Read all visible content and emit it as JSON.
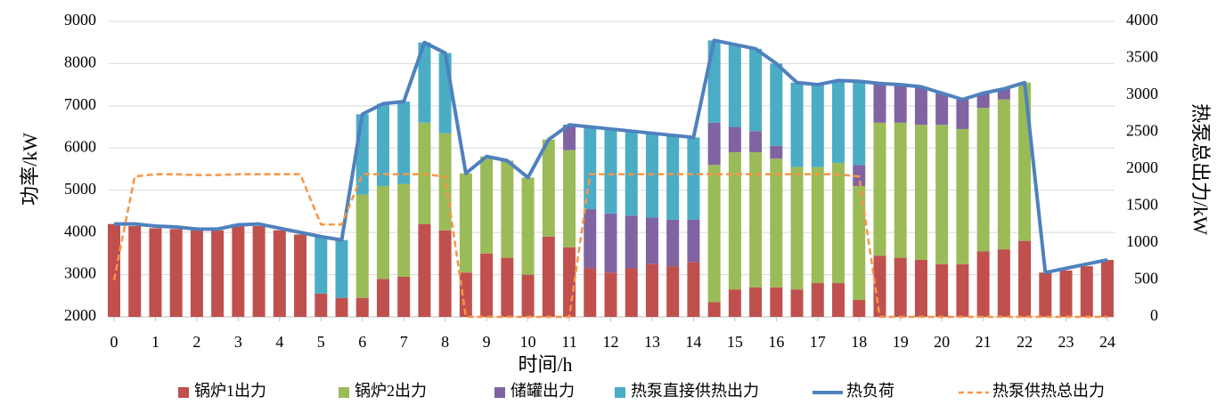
{
  "chart_data": {
    "type": "bar",
    "xlabel": "时间/h",
    "ylabel": "功率/kW",
    "y2label": "热泵总出力/kW",
    "x": [
      0,
      0.5,
      1,
      1.5,
      2,
      2.5,
      3,
      3.5,
      4,
      4.5,
      5,
      5.5,
      6,
      6.5,
      7,
      7.5,
      8,
      8.5,
      9,
      9.5,
      10,
      10.5,
      11,
      11.5,
      12,
      12.5,
      13,
      13.5,
      14,
      14.5,
      15,
      15.5,
      16,
      16.5,
      17,
      17.5,
      18,
      18.5,
      19,
      19.5,
      20,
      20.5,
      21,
      21.5,
      22,
      22.5,
      23,
      23.5,
      24
    ],
    "xlim": [
      0,
      24
    ],
    "xticks": [
      0,
      1,
      2,
      3,
      4,
      5,
      6,
      7,
      8,
      9,
      10,
      11,
      12,
      13,
      14,
      15,
      16,
      17,
      18,
      19,
      20,
      21,
      22,
      23,
      24
    ],
    "ylim": [
      2000,
      9000
    ],
    "yticks": [
      2000,
      3000,
      4000,
      5000,
      6000,
      7000,
      8000,
      9000
    ],
    "y2lim": [
      0,
      4000
    ],
    "y2ticks": [
      0,
      500,
      1000,
      1500,
      2000,
      2500,
      3000,
      3500,
      4000
    ],
    "grid": true,
    "legend": "bottom",
    "series": [
      {
        "name": "锅炉1出力",
        "type": "bar",
        "color": "#c0504d",
        "values": [
          4200,
          4150,
          4100,
          4080,
          4050,
          4050,
          4150,
          4150,
          4050,
          3950,
          2550,
          2450,
          2450,
          2900,
          2950,
          4200,
          4050,
          3050,
          3500,
          3400,
          3000,
          3900,
          3650,
          3150,
          3050,
          3150,
          3250,
          3200,
          3300,
          2350,
          2650,
          2700,
          2700,
          2650,
          2800,
          2800,
          2400,
          3450,
          3400,
          3350,
          3250,
          3250,
          3550,
          3600,
          3800,
          3050,
          3100,
          3200,
          3350
        ]
      },
      {
        "name": "锅炉2出力",
        "type": "bar",
        "color": "#9bbb59",
        "values": [
          0,
          0,
          0,
          0,
          0,
          0,
          0,
          0,
          0,
          0,
          0,
          0,
          2450,
          2200,
          2200,
          2400,
          2300,
          2350,
          2300,
          2300,
          2300,
          2300,
          2300,
          0,
          0,
          0,
          0,
          0,
          0,
          3250,
          3250,
          3200,
          3050,
          2900,
          2750,
          2850,
          2700,
          3150,
          3200,
          3200,
          3300,
          3200,
          3400,
          3550,
          3750,
          0,
          0,
          0,
          0
        ]
      },
      {
        "name": "储罐出力",
        "type": "bar",
        "color": "#8064a2",
        "values": [
          0,
          0,
          0,
          0,
          0,
          0,
          0,
          0,
          0,
          0,
          0,
          0,
          0,
          0,
          0,
          0,
          0,
          0,
          0,
          0,
          0,
          0,
          600,
          1400,
          1400,
          1250,
          1100,
          1100,
          1000,
          1000,
          600,
          500,
          300,
          0,
          0,
          0,
          500,
          930,
          900,
          900,
          750,
          700,
          350,
          250,
          0,
          0,
          0,
          0,
          0
        ]
      },
      {
        "name": "热泵直接供热出力",
        "type": "bar",
        "color": "#4bacc6",
        "values": [
          0,
          0,
          0,
          0,
          0,
          0,
          0,
          0,
          0,
          0,
          1350,
          1370,
          1900,
          1950,
          1950,
          1900,
          1900,
          0,
          0,
          0,
          0,
          0,
          0,
          1950,
          2000,
          2000,
          2000,
          2000,
          1950,
          1950,
          1950,
          1950,
          1950,
          2000,
          1950,
          1950,
          1950,
          0,
          0,
          0,
          0,
          0,
          0,
          0,
          0,
          0,
          0,
          0,
          0
        ]
      },
      {
        "name": "热负荷",
        "type": "line",
        "color": "#4f81bd",
        "values": [
          4200,
          4200,
          4150,
          4130,
          4080,
          4080,
          4180,
          4200,
          4100,
          4000,
          3900,
          3820,
          6800,
          7050,
          7100,
          8500,
          8250,
          5400,
          5800,
          5700,
          5300,
          6200,
          6550,
          6500,
          6450,
          6400,
          6350,
          6300,
          6250,
          8550,
          8450,
          8350,
          8000,
          7550,
          7500,
          7600,
          7580,
          7530,
          7500,
          7450,
          7300,
          7150,
          7300,
          7400,
          7550,
          3050,
          3150,
          3250,
          3350
        ]
      },
      {
        "name": "热泵供热总出力",
        "type": "line",
        "dashed": true,
        "axis": "y2",
        "color": "#f79646",
        "values": [
          500,
          1900,
          1930,
          1930,
          1920,
          1920,
          1930,
          1930,
          1930,
          1930,
          1250,
          1250,
          1930,
          1930,
          1930,
          1930,
          1900,
          0,
          0,
          0,
          0,
          0,
          0,
          1930,
          1930,
          1930,
          1930,
          1930,
          1930,
          1930,
          1930,
          1930,
          1930,
          1930,
          1930,
          1930,
          1900,
          0,
          0,
          0,
          0,
          0,
          0,
          0,
          0,
          0,
          0,
          0,
          0
        ]
      }
    ]
  }
}
